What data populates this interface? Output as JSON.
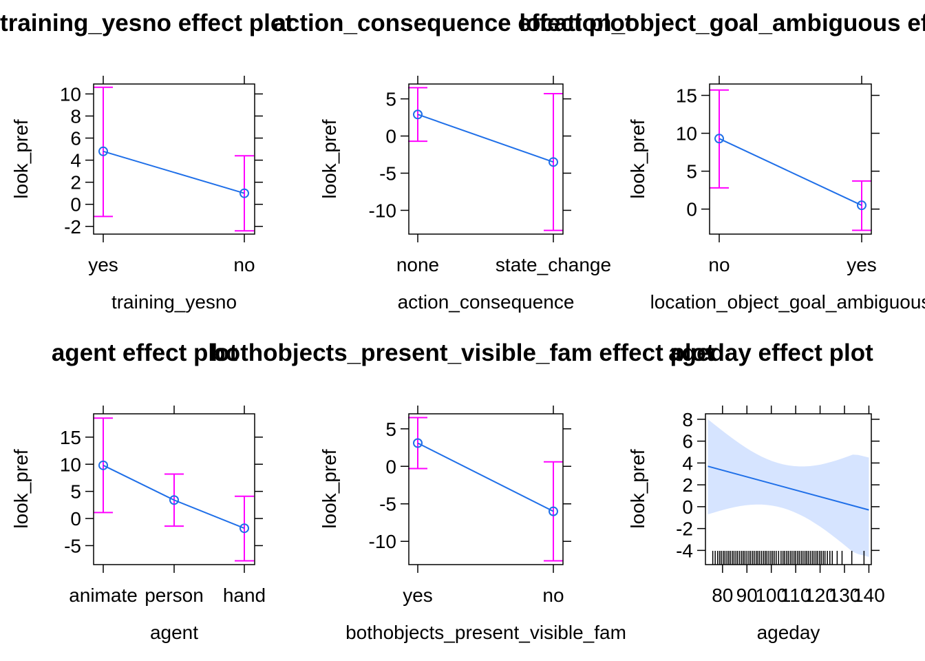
{
  "chart_data": [
    {
      "type": "line",
      "title": "training_yesno effect plot",
      "xlabel": "training_yesno",
      "ylabel": "look_pref",
      "categories": [
        "yes",
        "no"
      ],
      "values": [
        4.8,
        1.0
      ],
      "lower": [
        -1.1,
        -2.4
      ],
      "upper": [
        10.6,
        4.4
      ],
      "yticks": [
        10,
        8,
        6,
        4,
        2,
        0,
        -2
      ],
      "ytick_labels": [
        "10",
        "8",
        "6",
        "4",
        "2",
        "0",
        "-2"
      ],
      "ylim": [
        -2.7,
        10.9
      ]
    },
    {
      "type": "line",
      "title": "action_consequence effect plot",
      "xlabel": "action_consequence",
      "ylabel": "look_pref",
      "categories": [
        "none",
        "state_change"
      ],
      "values": [
        2.9,
        -3.5
      ],
      "lower": [
        -0.7,
        -12.7
      ],
      "upper": [
        6.5,
        5.7
      ],
      "yticks": [
        5,
        0,
        -5,
        -10
      ],
      "ytick_labels": [
        "5",
        "0",
        "-5",
        "-10"
      ],
      "ylim": [
        -13.2,
        7.0
      ]
    },
    {
      "type": "line",
      "title": "location_object_goal_ambiguous effect plot",
      "xlabel": "location_object_goal_ambiguous",
      "ylabel": "look_pref",
      "categories": [
        "no",
        "yes"
      ],
      "values": [
        9.3,
        0.5
      ],
      "lower": [
        2.8,
        -2.8
      ],
      "upper": [
        15.7,
        3.7
      ],
      "yticks": [
        15,
        10,
        5,
        0
      ],
      "ytick_labels": [
        "15",
        "10",
        "5",
        "0"
      ],
      "ylim": [
        -3.3,
        16.5
      ]
    },
    {
      "type": "line",
      "title": "agent effect plot",
      "xlabel": "agent",
      "ylabel": "look_pref",
      "categories": [
        "animate",
        "person",
        "hand"
      ],
      "values": [
        9.8,
        3.4,
        -1.8
      ],
      "lower": [
        1.1,
        -1.4,
        -7.8
      ],
      "upper": [
        18.5,
        8.2,
        4.1
      ],
      "yticks": [
        15,
        10,
        5,
        0,
        -5
      ],
      "ytick_labels": [
        "15",
        "10",
        "5",
        "0",
        "-5"
      ],
      "ylim": [
        -8.5,
        19.3
      ]
    },
    {
      "type": "line",
      "title": "bothobjects_present_visible_fam effect plot",
      "xlabel": "bothobjects_present_visible_fam",
      "ylabel": "look_pref",
      "categories": [
        "yes",
        "no"
      ],
      "values": [
        3.1,
        -6.0
      ],
      "lower": [
        -0.3,
        -12.6
      ],
      "upper": [
        6.5,
        0.6
      ],
      "yticks": [
        5,
        0,
        -5,
        -10
      ],
      "ytick_labels": [
        "5",
        "0",
        "-5",
        "-10"
      ],
      "ylim": [
        -13.1,
        7.0
      ]
    },
    {
      "type": "area",
      "title": "ageday effect plot",
      "xlabel": "ageday",
      "ylabel": "look_pref",
      "x": [
        74,
        140
      ],
      "y": [
        3.7,
        -0.3
      ],
      "band_lower": [
        -0.7,
        -4.6
      ],
      "band_upper": [
        8.0,
        4.5
      ],
      "xticks": [
        80,
        90,
        100,
        110,
        120,
        130,
        140
      ],
      "xtick_labels": [
        "80",
        "90",
        "100",
        "110",
        "120",
        "130",
        "140"
      ],
      "yticks": [
        8,
        6,
        4,
        2,
        0,
        -2,
        -4
      ],
      "ytick_labels": [
        "8",
        "6",
        "4",
        "2",
        "0",
        "-2",
        "-4"
      ],
      "xlim": [
        73,
        141
      ],
      "ylim": [
        -5.3,
        8.5
      ],
      "rug": [
        76,
        77,
        78,
        78.8,
        79.5,
        80.3,
        81,
        81.8,
        82.5,
        83.2,
        84,
        84.7,
        85.5,
        86.2,
        87,
        87.8,
        88.5,
        89.2,
        90,
        90.8,
        91.5,
        92.3,
        93,
        93.8,
        94.5,
        95.2,
        96,
        96.8,
        97.5,
        98.2,
        99,
        99.8,
        100.5,
        101.2,
        102,
        103,
        104,
        104.8,
        105.5,
        106.3,
        107,
        107.8,
        108.5,
        109.3,
        110,
        110.8,
        111.5,
        112.3,
        113,
        113.8,
        114.5,
        115.2,
        116,
        116.8,
        117.5,
        118.3,
        119,
        119.8,
        120.5,
        121.3,
        122,
        123,
        124,
        125,
        127,
        129,
        133,
        138
      ]
    }
  ],
  "colors": {
    "line": "#1f6fe8",
    "ci": "#ff00ff",
    "band": "#d6e4ff"
  }
}
